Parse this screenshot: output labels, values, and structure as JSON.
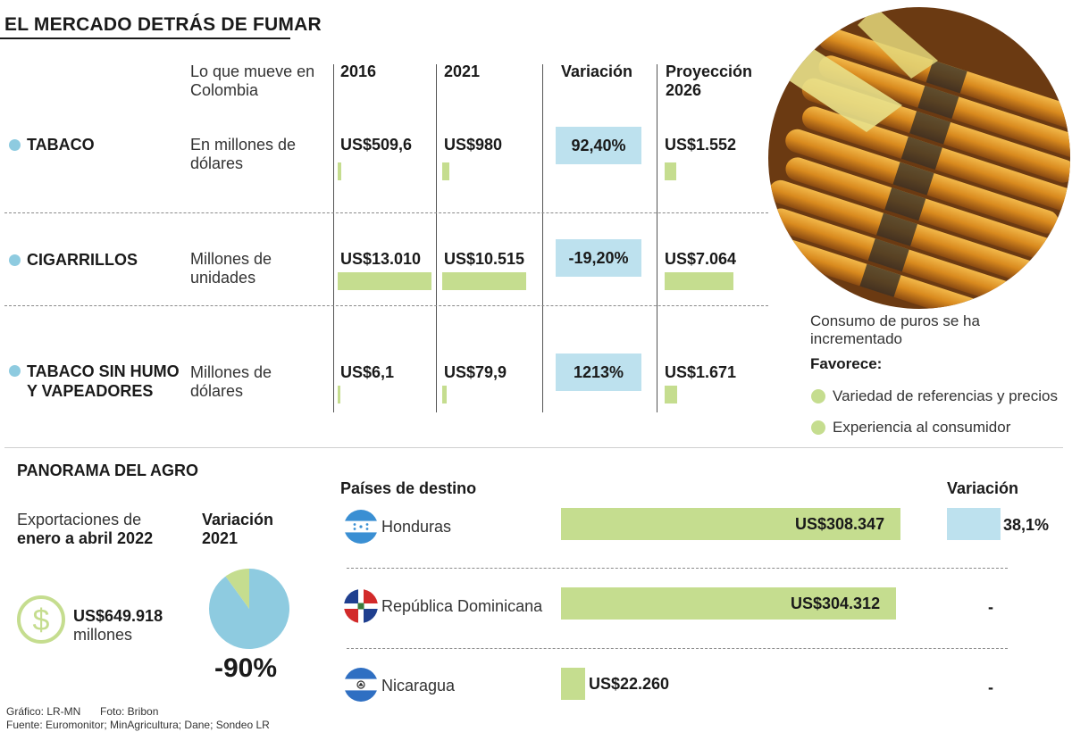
{
  "title": "EL MERCADO DETRÁS DE FUMAR",
  "chart_data": [
    {
      "type": "table",
      "title": "EL MERCADO DETRÁS DE FUMAR",
      "columns": [
        "Lo que mueve en Colombia",
        "2016",
        "2021",
        "Variación",
        "Proyección 2026"
      ],
      "rows": [
        {
          "category": "TABACO",
          "unit": "En millones de dólares",
          "v2016": 509.6,
          "v2021": 980,
          "variation_pct": 92.4,
          "v2026": 1552
        },
        {
          "category": "CIGARRILLOS",
          "unit": "Millones de unidades",
          "v2016": 13010,
          "v2021": 10515,
          "variation_pct": -19.2,
          "v2026": 7064
        },
        {
          "category": "TABACO SIN HUMO Y VAPEADORES",
          "unit": "Millones de dólares",
          "v2016": 6.1,
          "v2021": 79.9,
          "variation_pct": 1213,
          "v2026": 1671
        }
      ],
      "bar_scale_max": 13010
    },
    {
      "type": "pie",
      "title": "Variación 2021",
      "values": [
        90,
        10
      ],
      "colors": [
        "#8ecbe0",
        "#c5dd8f"
      ],
      "label": "-90%"
    },
    {
      "type": "bar",
      "title": "Países de destino",
      "categories": [
        "Honduras",
        "República Dominicana",
        "Nicaragua"
      ],
      "values": [
        308347,
        304312,
        22260
      ],
      "variation": [
        "38,1%",
        "-",
        "-"
      ],
      "xlim": [
        0,
        308347
      ]
    }
  ],
  "table": {
    "header": {
      "what": "Lo que mueve en Colombia",
      "c2016": "2016",
      "c2021": "2021",
      "cvar": "Variación",
      "c2026": "Proyección 2026"
    },
    "rows": [
      {
        "label": "TABACO",
        "unit": "En millones de dólares",
        "v2016": "US$509,6",
        "v2021": "US$980",
        "var": "92,40%",
        "v2026": "US$1.552"
      },
      {
        "label": "CIGARRILLOS",
        "unit": "Millones de unidades",
        "v2016": "US$13.010",
        "v2021": "US$10.515",
        "var": "-19,20%",
        "v2026": "US$7.064"
      },
      {
        "label": "TABACO SIN HUMO Y VAPEADORES",
        "unit": "Millones de dólares",
        "v2016": "US$6,1",
        "v2021": "US$79,9",
        "var": "1213%",
        "v2026": "US$1.671"
      }
    ]
  },
  "side": {
    "caption": "Consumo de puros se ha incrementado",
    "favorece": "Favorece:",
    "bullets": [
      "Variedad de referencias y precios",
      "Experiencia al consumidor"
    ]
  },
  "agro": {
    "title": "PANORAMA DEL AGRO",
    "exports_line1": "Exportaciones de",
    "exports_line2": "enero a abril 2022",
    "exports_value": "US$649.918",
    "exports_unit": "millones",
    "pie_title": "Variación 2021",
    "pie_value": "-90%"
  },
  "destinos": {
    "header": "Países de destino",
    "var_header": "Variación",
    "rows": [
      {
        "country": "Honduras",
        "value": "US$308.347",
        "var": "38,1%"
      },
      {
        "country": "República Dominicana",
        "value": "US$304.312",
        "var": "-"
      },
      {
        "country": "Nicaragua",
        "value": "US$22.260",
        "var": "-"
      }
    ]
  },
  "credits": {
    "grafico": "Gráfico: LR-MN",
    "foto": "Foto: Bribon",
    "fuente": "Fuente: Euromonitor; MinAgricultura; Dane; Sondeo LR"
  },
  "colors": {
    "bar": "#c5dd8f",
    "highlight": "#bde1ee",
    "dot": "#8ecbe0"
  },
  "icons": [
    "dollar-icon",
    "honduras-flag-icon",
    "dominican-flag-icon",
    "nicaragua-flag-icon"
  ]
}
